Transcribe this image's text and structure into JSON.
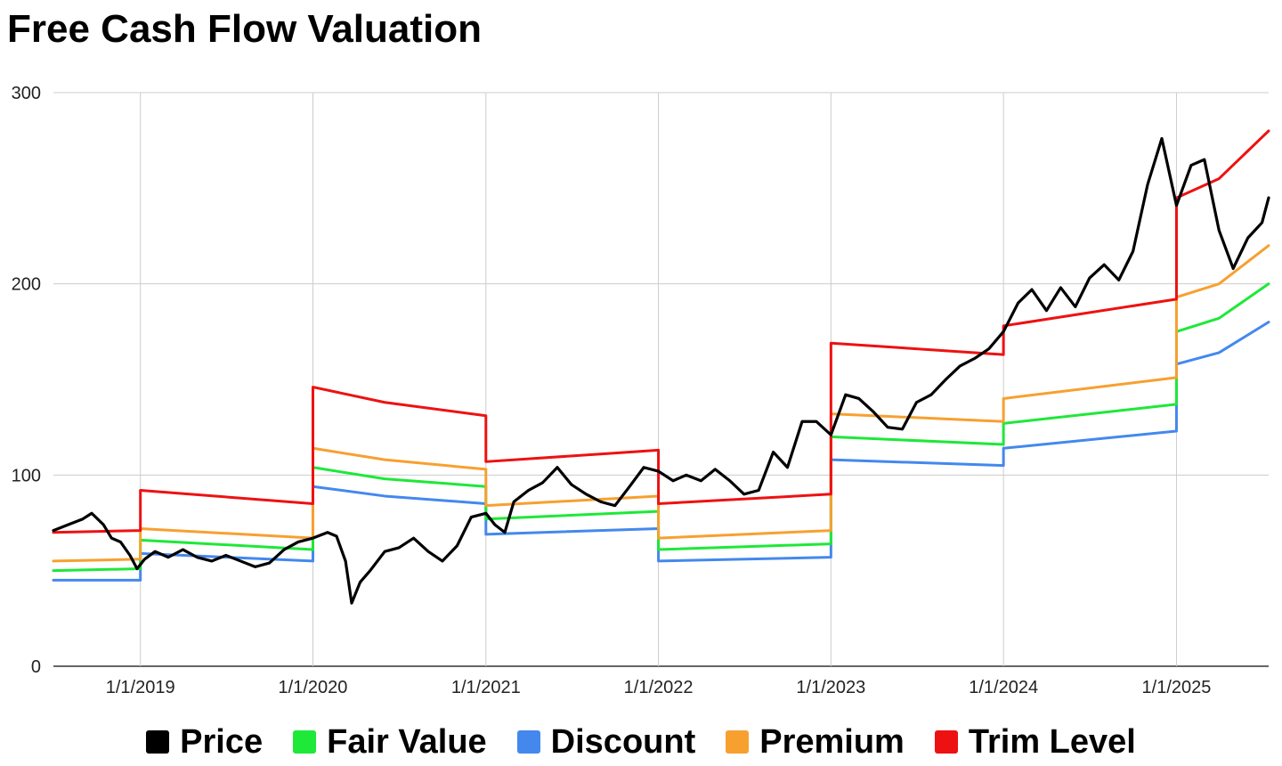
{
  "chart_data": {
    "type": "line",
    "title": "Free Cash Flow Valuation",
    "xlabel": "",
    "ylabel": "",
    "ylim": [
      0,
      300
    ],
    "xlim": [
      "2018-07-01",
      "2025-07-15"
    ],
    "y_ticks": [
      "0",
      "100",
      "200",
      "300"
    ],
    "x_ticks": [
      {
        "date": "2019-01-01",
        "label": "1/1/2019"
      },
      {
        "date": "2020-01-01",
        "label": "1/1/2020"
      },
      {
        "date": "2021-01-01",
        "label": "1/1/2021"
      },
      {
        "date": "2022-01-01",
        "label": "1/1/2022"
      },
      {
        "date": "2023-01-01",
        "label": "1/1/2023"
      },
      {
        "date": "2024-01-01",
        "label": "1/1/2024"
      },
      {
        "date": "2025-01-01",
        "label": "1/1/2025"
      }
    ],
    "grid": true,
    "legend_position": "bottom",
    "series": [
      {
        "name": "Price",
        "color": "#000000",
        "points": [
          [
            "2018-07-01",
            71
          ],
          [
            "2018-08-01",
            74
          ],
          [
            "2018-09-01",
            77
          ],
          [
            "2018-09-20",
            80
          ],
          [
            "2018-10-15",
            74
          ],
          [
            "2018-11-01",
            67
          ],
          [
            "2018-11-20",
            65
          ],
          [
            "2018-12-10",
            58
          ],
          [
            "2018-12-25",
            51
          ],
          [
            "2019-01-10",
            56
          ],
          [
            "2019-02-01",
            60
          ],
          [
            "2019-03-01",
            57
          ],
          [
            "2019-04-01",
            61
          ],
          [
            "2019-05-01",
            57
          ],
          [
            "2019-06-01",
            55
          ],
          [
            "2019-07-01",
            58
          ],
          [
            "2019-08-01",
            55
          ],
          [
            "2019-09-01",
            52
          ],
          [
            "2019-10-01",
            54
          ],
          [
            "2019-11-01",
            61
          ],
          [
            "2019-12-01",
            65
          ],
          [
            "2020-01-01",
            67
          ],
          [
            "2020-02-01",
            70
          ],
          [
            "2020-02-20",
            68
          ],
          [
            "2020-03-10",
            55
          ],
          [
            "2020-03-23",
            33
          ],
          [
            "2020-04-10",
            44
          ],
          [
            "2020-05-01",
            50
          ],
          [
            "2020-06-01",
            60
          ],
          [
            "2020-07-01",
            62
          ],
          [
            "2020-08-01",
            67
          ],
          [
            "2020-09-01",
            60
          ],
          [
            "2020-10-01",
            55
          ],
          [
            "2020-11-01",
            63
          ],
          [
            "2020-12-01",
            78
          ],
          [
            "2021-01-01",
            80
          ],
          [
            "2021-01-20",
            74
          ],
          [
            "2021-02-10",
            70
          ],
          [
            "2021-03-01",
            86
          ],
          [
            "2021-04-01",
            92
          ],
          [
            "2021-05-01",
            96
          ],
          [
            "2021-06-01",
            104
          ],
          [
            "2021-07-01",
            95
          ],
          [
            "2021-08-01",
            90
          ],
          [
            "2021-09-01",
            86
          ],
          [
            "2021-10-01",
            84
          ],
          [
            "2021-11-01",
            94
          ],
          [
            "2021-12-01",
            104
          ],
          [
            "2022-01-01",
            102
          ],
          [
            "2022-02-01",
            97
          ],
          [
            "2022-03-01",
            100
          ],
          [
            "2022-04-01",
            97
          ],
          [
            "2022-05-01",
            103
          ],
          [
            "2022-06-01",
            97
          ],
          [
            "2022-07-01",
            90
          ],
          [
            "2022-08-01",
            92
          ],
          [
            "2022-09-01",
            112
          ],
          [
            "2022-10-01",
            104
          ],
          [
            "2022-11-01",
            128
          ],
          [
            "2022-12-01",
            128
          ],
          [
            "2023-01-01",
            121
          ],
          [
            "2023-02-01",
            142
          ],
          [
            "2023-03-01",
            140
          ],
          [
            "2023-04-01",
            133
          ],
          [
            "2023-05-01",
            125
          ],
          [
            "2023-06-01",
            124
          ],
          [
            "2023-07-01",
            138
          ],
          [
            "2023-08-01",
            142
          ],
          [
            "2023-09-01",
            150
          ],
          [
            "2023-10-01",
            157
          ],
          [
            "2023-11-01",
            161
          ],
          [
            "2023-12-01",
            166
          ],
          [
            "2024-01-01",
            175
          ],
          [
            "2024-02-01",
            190
          ],
          [
            "2024-03-01",
            197
          ],
          [
            "2024-04-01",
            186
          ],
          [
            "2024-05-01",
            198
          ],
          [
            "2024-06-01",
            188
          ],
          [
            "2024-07-01",
            203
          ],
          [
            "2024-08-01",
            210
          ],
          [
            "2024-09-01",
            202
          ],
          [
            "2024-10-01",
            217
          ],
          [
            "2024-11-01",
            252
          ],
          [
            "2024-12-01",
            276
          ],
          [
            "2025-01-01",
            241
          ],
          [
            "2025-02-01",
            262
          ],
          [
            "2025-03-01",
            265
          ],
          [
            "2025-04-01",
            228
          ],
          [
            "2025-05-01",
            208
          ],
          [
            "2025-06-01",
            224
          ],
          [
            "2025-07-01",
            232
          ],
          [
            "2025-07-15",
            245
          ]
        ]
      },
      {
        "name": "Fair Value",
        "color": "#1ee838",
        "points": [
          [
            "2018-07-01",
            50
          ],
          [
            "2019-01-01",
            51
          ],
          [
            "2019-01-01",
            66
          ],
          [
            "2020-01-01",
            61
          ],
          [
            "2020-01-01",
            104
          ],
          [
            "2020-06-01",
            98
          ],
          [
            "2021-01-01",
            94
          ],
          [
            "2021-01-01",
            77
          ],
          [
            "2022-01-01",
            81
          ],
          [
            "2022-01-01",
            61
          ],
          [
            "2023-01-01",
            64
          ],
          [
            "2023-01-01",
            120
          ],
          [
            "2024-01-01",
            116
          ],
          [
            "2024-01-01",
            127
          ],
          [
            "2025-01-01",
            137
          ],
          [
            "2025-01-01",
            175
          ],
          [
            "2025-04-01",
            182
          ],
          [
            "2025-07-15",
            200
          ]
        ]
      },
      {
        "name": "Discount",
        "color": "#4488ee",
        "points": [
          [
            "2018-07-01",
            45
          ],
          [
            "2019-01-01",
            45
          ],
          [
            "2019-01-01",
            59
          ],
          [
            "2020-01-01",
            55
          ],
          [
            "2020-01-01",
            94
          ],
          [
            "2020-06-01",
            89
          ],
          [
            "2021-01-01",
            85
          ],
          [
            "2021-01-01",
            69
          ],
          [
            "2022-01-01",
            72
          ],
          [
            "2022-01-01",
            55
          ],
          [
            "2023-01-01",
            57
          ],
          [
            "2023-01-01",
            108
          ],
          [
            "2024-01-01",
            105
          ],
          [
            "2024-01-01",
            114
          ],
          [
            "2025-01-01",
            123
          ],
          [
            "2025-01-01",
            158
          ],
          [
            "2025-04-01",
            164
          ],
          [
            "2025-07-15",
            180
          ]
        ]
      },
      {
        "name": "Premium",
        "color": "#f7a030",
        "points": [
          [
            "2018-07-01",
            55
          ],
          [
            "2019-01-01",
            56
          ],
          [
            "2019-01-01",
            72
          ],
          [
            "2020-01-01",
            67
          ],
          [
            "2020-01-01",
            114
          ],
          [
            "2020-06-01",
            108
          ],
          [
            "2021-01-01",
            103
          ],
          [
            "2021-01-01",
            84
          ],
          [
            "2022-01-01",
            89
          ],
          [
            "2022-01-01",
            67
          ],
          [
            "2023-01-01",
            71
          ],
          [
            "2023-01-01",
            132
          ],
          [
            "2024-01-01",
            128
          ],
          [
            "2024-01-01",
            140
          ],
          [
            "2025-01-01",
            151
          ],
          [
            "2025-01-01",
            193
          ],
          [
            "2025-04-01",
            200
          ],
          [
            "2025-07-15",
            220
          ]
        ]
      },
      {
        "name": "Trim Level",
        "color": "#ee1111",
        "points": [
          [
            "2018-07-01",
            70
          ],
          [
            "2019-01-01",
            71
          ],
          [
            "2019-01-01",
            92
          ],
          [
            "2020-01-01",
            85
          ],
          [
            "2020-01-01",
            146
          ],
          [
            "2020-06-01",
            138
          ],
          [
            "2021-01-01",
            131
          ],
          [
            "2021-01-01",
            107
          ],
          [
            "2022-01-01",
            113
          ],
          [
            "2022-01-01",
            85
          ],
          [
            "2023-01-01",
            90
          ],
          [
            "2023-01-01",
            169
          ],
          [
            "2024-01-01",
            163
          ],
          [
            "2024-01-01",
            178
          ],
          [
            "2025-01-01",
            192
          ],
          [
            "2025-01-01",
            245
          ],
          [
            "2025-04-01",
            255
          ],
          [
            "2025-07-15",
            280
          ]
        ]
      }
    ]
  }
}
